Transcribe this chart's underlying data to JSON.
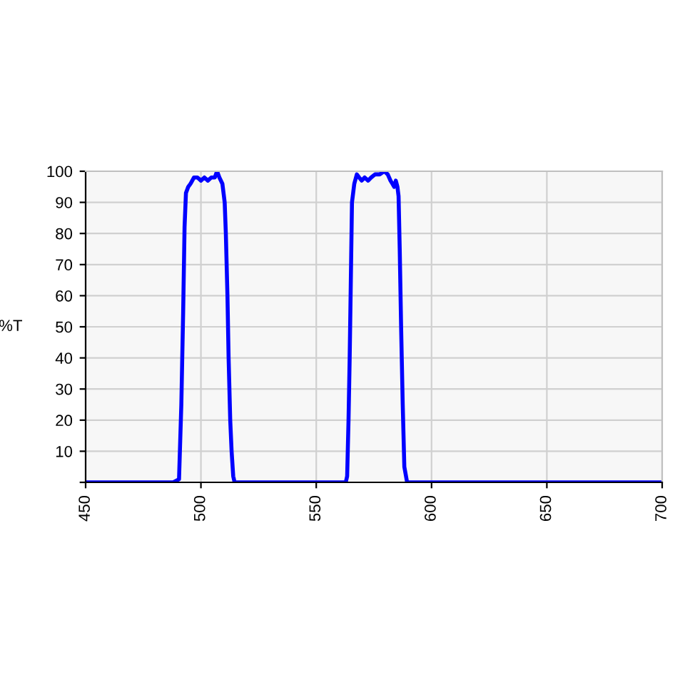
{
  "chart_data": {
    "type": "line",
    "ylabel": "%T",
    "series": [
      {
        "color": "#0000ff",
        "x": [
          450,
          488,
          490.5,
          491.5,
          492.3,
          492.9,
          493.5,
          494.5,
          495.5,
          497,
          498.5,
          500,
          501.5,
          503,
          504.5,
          506,
          507,
          508,
          509.3,
          510.3,
          510.8,
          511.5,
          512,
          512.7,
          513.3,
          514,
          514.6,
          530,
          560,
          562.8,
          563.4,
          564,
          564.5,
          565,
          565.5,
          566.5,
          567.6,
          568.6,
          569.7,
          571,
          572.5,
          573.8,
          575.5,
          577.5,
          579.5,
          581,
          582.2,
          583,
          583.8,
          584.5,
          585.2,
          585.7,
          586.2,
          586.8,
          587.5,
          588.2,
          589.4,
          620,
          700
        ],
        "values": [
          0,
          0,
          1,
          25,
          55,
          82,
          93,
          95,
          96,
          98,
          98,
          97,
          98,
          97,
          98,
          98,
          100,
          98,
          96,
          90,
          80,
          60,
          40,
          20,
          10,
          2,
          0,
          0,
          0,
          0,
          2,
          20,
          40,
          65,
          90,
          96,
          99,
          98,
          97,
          98,
          97,
          98,
          99,
          99,
          100,
          99,
          97,
          96,
          95,
          97,
          95,
          92,
          75,
          50,
          25,
          5,
          0,
          0,
          0
        ]
      }
    ],
    "xlim": [
      450,
      700
    ],
    "xticks": [
      450,
      500,
      550,
      600,
      650,
      700
    ],
    "ylim": [
      0,
      100
    ],
    "yticks": [
      {
        "value": 0,
        "label": null
      },
      10,
      20,
      30,
      40,
      50,
      60,
      70,
      80,
      90,
      100
    ],
    "grid": true,
    "marker": "none",
    "line_style": "solid"
  }
}
